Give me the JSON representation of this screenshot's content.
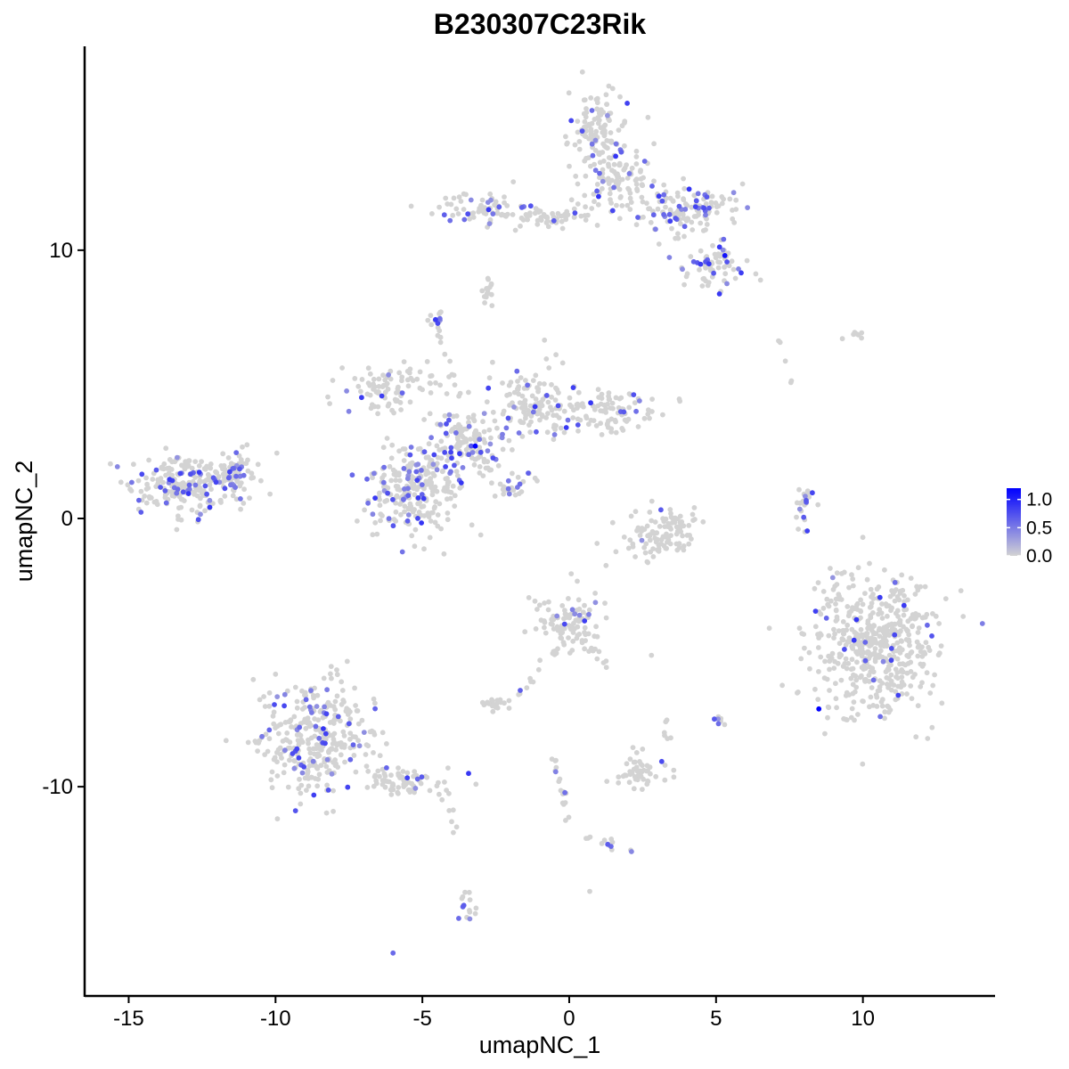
{
  "chart_data": {
    "type": "scatter",
    "title": "B230307C23Rik",
    "xlabel": "umapNC_1",
    "ylabel": "umapNC_2",
    "xlim": [
      -16.5,
      14.5
    ],
    "ylim": [
      -17.8,
      17.6
    ],
    "x_ticks": [
      {
        "value": -15,
        "label": "-15"
      },
      {
        "value": -10,
        "label": "-10"
      },
      {
        "value": -5,
        "label": "-5"
      },
      {
        "value": 0,
        "label": "0"
      },
      {
        "value": 5,
        "label": "5"
      },
      {
        "value": 10,
        "label": "10"
      }
    ],
    "y_ticks": [
      {
        "value": 10,
        "label": "10"
      },
      {
        "value": 0,
        "label": "0"
      },
      {
        "value": -10,
        "label": "-10"
      }
    ],
    "grid": false,
    "legend": {
      "position": "right",
      "type": "colorbar",
      "min": 0.0,
      "max": 1.2,
      "low_color": "#d3d3d3",
      "high_color": "#0000ff",
      "ticks": [
        {
          "value": 1.0,
          "label": "1.0"
        },
        {
          "value": 0.5,
          "label": "0.5"
        },
        {
          "value": 0.0,
          "label": "0.0"
        }
      ]
    },
    "clusters": [
      {
        "cx": -13.0,
        "cy": 1.2,
        "rx": 1.8,
        "ry": 1.0,
        "n": 230,
        "expr_frac": 0.2
      },
      {
        "cx": -11.5,
        "cy": 1.6,
        "rx": 0.8,
        "ry": 0.5,
        "n": 50,
        "expr_frac": 0.2
      },
      {
        "cx": -5.3,
        "cy": 1.0,
        "rx": 1.5,
        "ry": 1.4,
        "n": 260,
        "expr_frac": 0.18
      },
      {
        "cx": -3.5,
        "cy": 2.8,
        "rx": 1.2,
        "ry": 1.0,
        "n": 120,
        "expr_frac": 0.25
      },
      {
        "cx": -6.0,
        "cy": 4.8,
        "rx": 1.5,
        "ry": 0.8,
        "n": 90,
        "expr_frac": 0.15
      },
      {
        "cx": -1.2,
        "cy": 4.2,
        "rx": 1.6,
        "ry": 1.2,
        "n": 130,
        "expr_frac": 0.12
      },
      {
        "cx": 1.5,
        "cy": 4.0,
        "rx": 1.5,
        "ry": 0.7,
        "n": 90,
        "expr_frac": 0.05
      },
      {
        "cx": -1.8,
        "cy": 1.2,
        "rx": 0.8,
        "ry": 0.5,
        "n": 20,
        "expr_frac": 0.4
      },
      {
        "cx": -4.5,
        "cy": 7.4,
        "rx": 0.3,
        "ry": 0.3,
        "n": 12,
        "expr_frac": 0.6
      },
      {
        "cx": 1.0,
        "cy": 14.5,
        "rx": 1.0,
        "ry": 1.2,
        "n": 110,
        "expr_frac": 0.15
      },
      {
        "cx": 1.5,
        "cy": 12.5,
        "rx": 1.2,
        "ry": 1.2,
        "n": 110,
        "expr_frac": 0.1
      },
      {
        "cx": 4.2,
        "cy": 11.5,
        "rx": 1.5,
        "ry": 0.9,
        "n": 130,
        "expr_frac": 0.2
      },
      {
        "cx": 4.9,
        "cy": 9.4,
        "rx": 1.0,
        "ry": 0.7,
        "n": 70,
        "expr_frac": 0.2
      },
      {
        "cx": -3.0,
        "cy": 11.5,
        "rx": 1.5,
        "ry": 0.6,
        "n": 70,
        "expr_frac": 0.15
      },
      {
        "cx": -1.0,
        "cy": 11.2,
        "rx": 1.5,
        "ry": 0.3,
        "n": 40,
        "expr_frac": 0.05
      },
      {
        "cx": -2.8,
        "cy": 8.5,
        "rx": 0.3,
        "ry": 0.5,
        "n": 15,
        "expr_frac": 0.0
      },
      {
        "cx": 3.2,
        "cy": -0.5,
        "rx": 1.3,
        "ry": 0.9,
        "n": 110,
        "expr_frac": 0.02
      },
      {
        "cx": 10.4,
        "cy": -4.8,
        "rx": 2.0,
        "ry": 2.3,
        "n": 520,
        "expr_frac": 0.06
      },
      {
        "cx": 8.0,
        "cy": 0.3,
        "rx": 0.3,
        "ry": 0.8,
        "n": 16,
        "expr_frac": 0.2
      },
      {
        "cx": -8.6,
        "cy": -8.2,
        "rx": 1.7,
        "ry": 1.9,
        "n": 330,
        "expr_frac": 0.15
      },
      {
        "cx": -5.5,
        "cy": -9.8,
        "rx": 1.4,
        "ry": 0.5,
        "n": 70,
        "expr_frac": 0.1
      },
      {
        "cx": 0.0,
        "cy": -3.8,
        "rx": 0.9,
        "ry": 0.9,
        "n": 100,
        "expr_frac": 0.05
      },
      {
        "cx": -2.5,
        "cy": -6.9,
        "rx": 0.5,
        "ry": 0.2,
        "n": 20,
        "expr_frac": 0.0
      },
      {
        "cx": 2.3,
        "cy": -9.4,
        "rx": 0.8,
        "ry": 0.6,
        "n": 50,
        "expr_frac": 0.05
      },
      {
        "cx": 5.1,
        "cy": -7.5,
        "rx": 0.2,
        "ry": 0.3,
        "n": 8,
        "expr_frac": 0.5
      },
      {
        "cx": -3.5,
        "cy": -14.5,
        "rx": 0.3,
        "ry": 0.7,
        "n": 15,
        "expr_frac": 0.1
      },
      {
        "cx": 9.7,
        "cy": 6.9,
        "rx": 0.3,
        "ry": 0.2,
        "n": 6,
        "expr_frac": 0.0
      }
    ],
    "bridges": [
      {
        "from": [
          -3.4,
          2.8
        ],
        "to": [
          -2.0,
          1.0
        ],
        "n": 14
      },
      {
        "from": [
          -3.3,
          3.0
        ],
        "to": [
          -4.5,
          7.2
        ],
        "n": 14
      },
      {
        "from": [
          -0.8,
          11.2
        ],
        "to": [
          0.3,
          11.3
        ],
        "n": 10
      },
      {
        "from": [
          0.0,
          -4.5
        ],
        "to": [
          -1.8,
          -6.6
        ],
        "n": 16
      },
      {
        "from": [
          0.5,
          -4.5
        ],
        "to": [
          1.2,
          -5.5
        ],
        "n": 10
      },
      {
        "from": [
          -0.5,
          -9.0
        ],
        "to": [
          0.0,
          -11.5
        ],
        "n": 18
      },
      {
        "from": [
          0.5,
          -11.8
        ],
        "to": [
          2.5,
          -12.5
        ],
        "n": 14
      },
      {
        "from": [
          -4.0,
          -10.3
        ],
        "to": [
          -4.0,
          -11.8
        ],
        "n": 6
      },
      {
        "from": [
          3.2,
          -7.5
        ],
        "to": [
          3.5,
          -8.6
        ],
        "n": 6
      },
      {
        "from": [
          7.6,
          -0.2
        ],
        "to": [
          8.3,
          1.1
        ],
        "n": 10
      },
      {
        "from": [
          7.0,
          6.9
        ],
        "to": [
          7.7,
          4.5
        ],
        "n": 5
      },
      {
        "from": [
          -11.2,
          1.5
        ],
        "to": [
          -11.0,
          2.8
        ],
        "n": 8
      }
    ],
    "singletons": [
      {
        "x": 8.5,
        "y": -7.1,
        "value": 1.2
      },
      {
        "x": -3.2,
        "y": 2.7,
        "value": 1.2
      },
      {
        "x": 5.3,
        "y": 9.8,
        "value": 1.1
      },
      {
        "x": 1.0,
        "y": 12.0,
        "value": 0.9
      },
      {
        "x": -6.0,
        "y": -16.2,
        "value": 0.6
      },
      {
        "x": 0.7,
        "y": -13.9,
        "value": 0.0
      },
      {
        "x": 9.3,
        "y": 6.7,
        "value": 0.0
      },
      {
        "x": 2.8,
        "y": -5.1,
        "value": 0.0
      }
    ]
  }
}
